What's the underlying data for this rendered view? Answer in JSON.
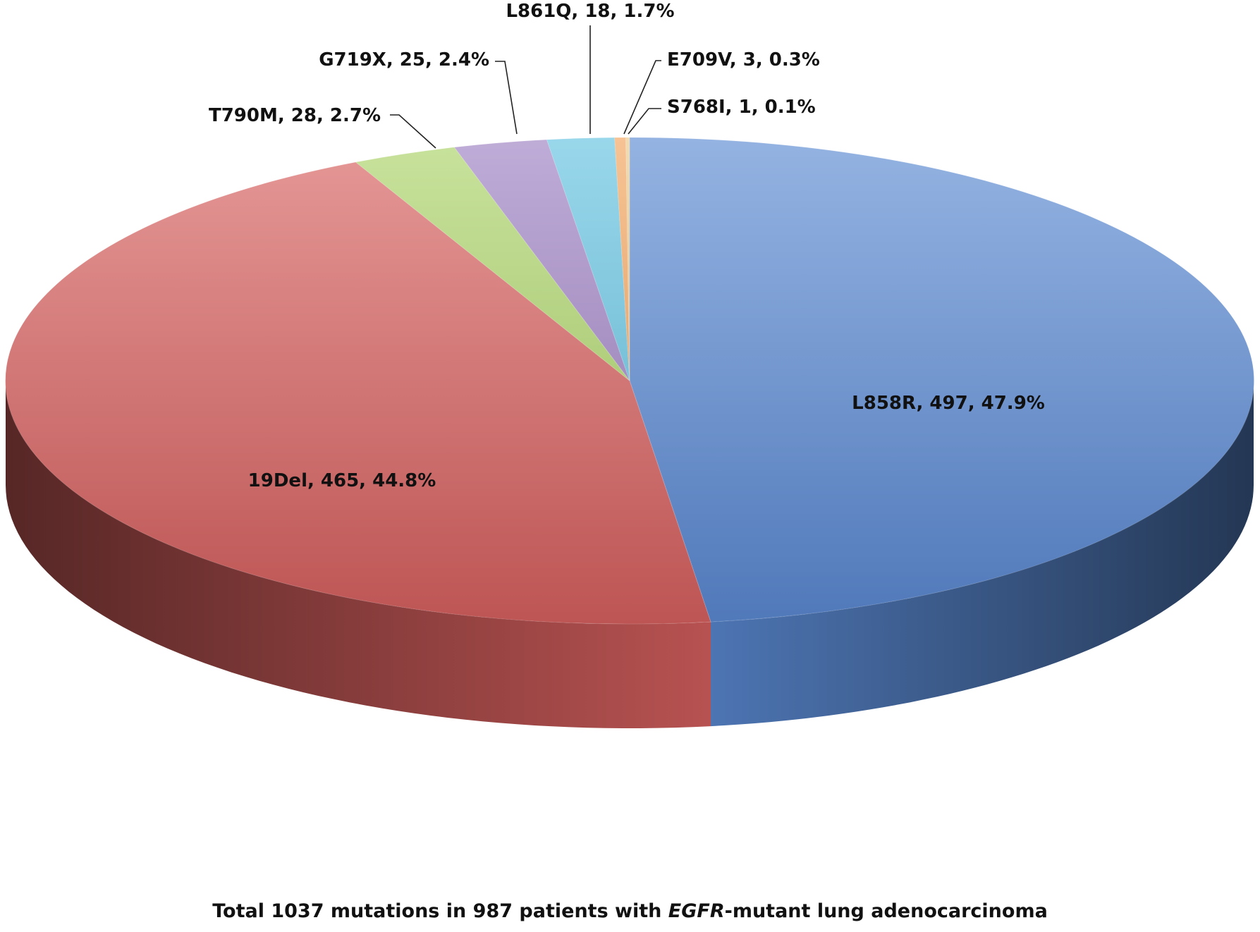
{
  "chart_data": {
    "type": "pie",
    "style": "3d",
    "slices": [
      {
        "label": "L858R, 497, 47.9%",
        "name": "L858R",
        "count": 497,
        "percent": 47.9,
        "color": "#5b8ad3"
      },
      {
        "label": "19Del, 465, 44.8%",
        "name": "19Del",
        "count": 465,
        "percent": 44.8,
        "color": "#d7615f"
      },
      {
        "label": "T790M, 28, 2.7%",
        "name": "T790M",
        "count": 28,
        "percent": 2.7,
        "color": "#aad366"
      },
      {
        "label": "G719X, 25, 2.4%",
        "name": "G719X",
        "count": 25,
        "percent": 2.4,
        "color": "#9c7fc2"
      },
      {
        "label": "L861Q, 18, 1.7%",
        "name": "L861Q",
        "count": 18,
        "percent": 1.7,
        "color": "#62c1e0"
      },
      {
        "label": "E709V, 3, 0.3%",
        "name": "E709V",
        "count": 3,
        "percent": 0.3,
        "color": "#f3a25a"
      },
      {
        "label": "S768I, 1, 0.1%",
        "name": "S768I",
        "count": 1,
        "percent": 0.1,
        "color": "#e8c88a"
      }
    ],
    "legend": "none",
    "caption": {
      "prefix": "Total 1037 mutations in 987 patients with ",
      "italic": "EGFR",
      "suffix": "-mutant lung adenocarcinoma"
    }
  }
}
